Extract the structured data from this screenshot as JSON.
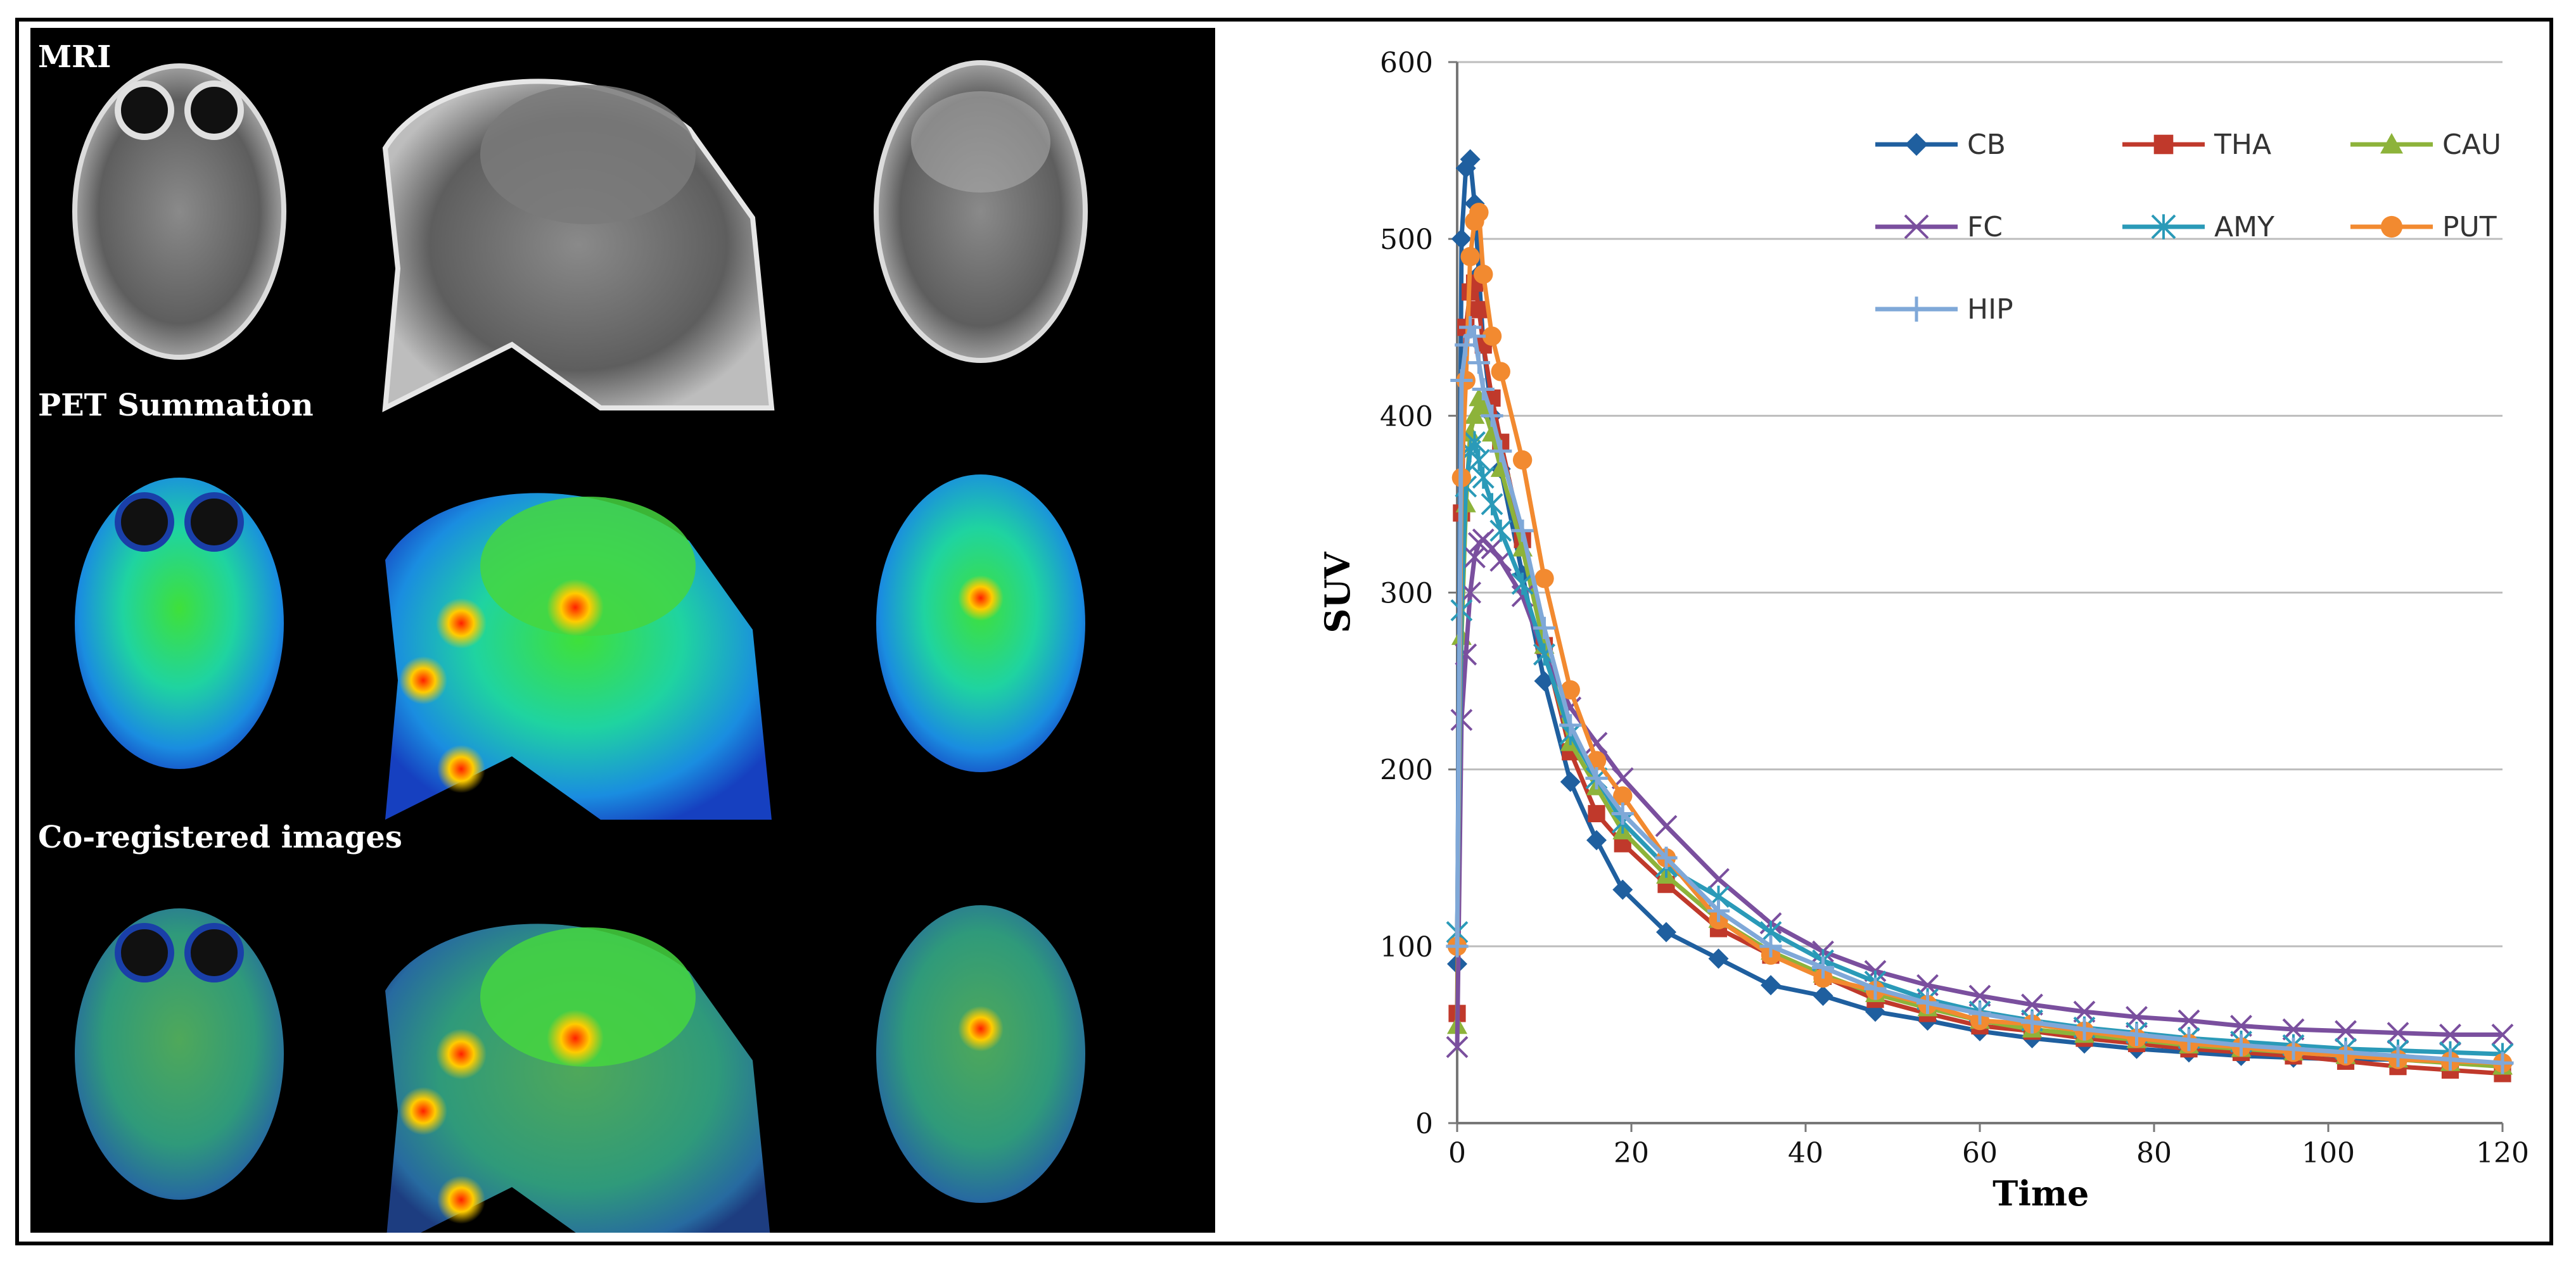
{
  "figure": {
    "image_panel": {
      "rows": [
        {
          "label": "MRI",
          "type": "mri"
        },
        {
          "label": "PET Summation",
          "type": "pet"
        },
        {
          "label": "Co-registered images",
          "type": "coreg"
        }
      ],
      "views": [
        "axial",
        "sagittal",
        "coronal"
      ]
    }
  },
  "chart_data": {
    "type": "line",
    "title": "",
    "xlabel": "Time",
    "ylabel": "SUV",
    "xlim": [
      0,
      120
    ],
    "ylim": [
      0,
      600
    ],
    "xticks": [
      0,
      20,
      40,
      60,
      80,
      100,
      120
    ],
    "yticks": [
      0,
      100,
      200,
      300,
      400,
      500,
      600
    ],
    "grid": "horizontal",
    "legend": "top-right, 3 columns",
    "x": [
      0,
      0.5,
      1,
      1.5,
      2,
      2.5,
      3,
      4,
      5,
      7.5,
      10,
      13,
      16,
      19,
      24,
      30,
      36,
      42,
      48,
      54,
      60,
      66,
      72,
      78,
      84,
      90,
      96,
      102,
      108,
      114,
      120
    ],
    "series": [
      {
        "name": "CB",
        "color": "#1f5f9f",
        "marker": "diamond",
        "values": [
          90,
          500,
          540,
          545,
          520,
          480,
          440,
          400,
          370,
          310,
          250,
          193,
          160,
          132,
          108,
          93,
          78,
          72,
          63,
          58,
          52,
          48,
          45,
          42,
          40,
          38,
          37,
          36,
          36,
          35,
          33
        ]
      },
      {
        "name": "THA",
        "color": "#c0392b",
        "marker": "square",
        "values": [
          62,
          345,
          450,
          470,
          475,
          460,
          440,
          410,
          385,
          330,
          270,
          210,
          175,
          158,
          135,
          110,
          95,
          83,
          70,
          62,
          55,
          52,
          48,
          45,
          42,
          40,
          38,
          35,
          32,
          30,
          28
        ]
      },
      {
        "name": "CAU",
        "color": "#8db33a",
        "marker": "triangle",
        "values": [
          55,
          275,
          350,
          390,
          400,
          410,
          405,
          390,
          370,
          325,
          270,
          215,
          190,
          165,
          140,
          115,
          97,
          84,
          73,
          65,
          58,
          53,
          50,
          47,
          44,
          42,
          40,
          38,
          36,
          34,
          32
        ]
      },
      {
        "name": "FC",
        "color": "#7a4f9e",
        "marker": "x",
        "values": [
          43,
          228,
          265,
          300,
          320,
          328,
          330,
          325,
          318,
          298,
          265,
          235,
          215,
          195,
          168,
          138,
          113,
          97,
          86,
          78,
          72,
          67,
          63,
          60,
          58,
          55,
          53,
          52,
          51,
          50,
          50
        ]
      },
      {
        "name": "AMY",
        "color": "#2a9ab8",
        "marker": "asterisk",
        "values": [
          108,
          290,
          360,
          380,
          385,
          375,
          365,
          350,
          335,
          305,
          265,
          220,
          195,
          170,
          145,
          128,
          108,
          92,
          80,
          70,
          63,
          58,
          54,
          51,
          48,
          46,
          44,
          42,
          41,
          40,
          39
        ]
      },
      {
        "name": "PUT",
        "color": "#f28a30",
        "marker": "circle",
        "values": [
          100,
          365,
          420,
          490,
          510,
          515,
          480,
          445,
          425,
          375,
          308,
          245,
          205,
          185,
          150,
          115,
          95,
          82,
          75,
          67,
          58,
          56,
          52,
          48,
          45,
          43,
          40,
          38,
          36,
          35,
          34
        ]
      },
      {
        "name": "HIP",
        "color": "#7fa8d8",
        "marker": "plus",
        "values": [
          100,
          420,
          440,
          450,
          445,
          430,
          415,
          400,
          380,
          335,
          280,
          225,
          195,
          175,
          150,
          120,
          100,
          88,
          76,
          68,
          62,
          57,
          53,
          50,
          47,
          44,
          42,
          40,
          38,
          36,
          34
        ]
      }
    ]
  }
}
